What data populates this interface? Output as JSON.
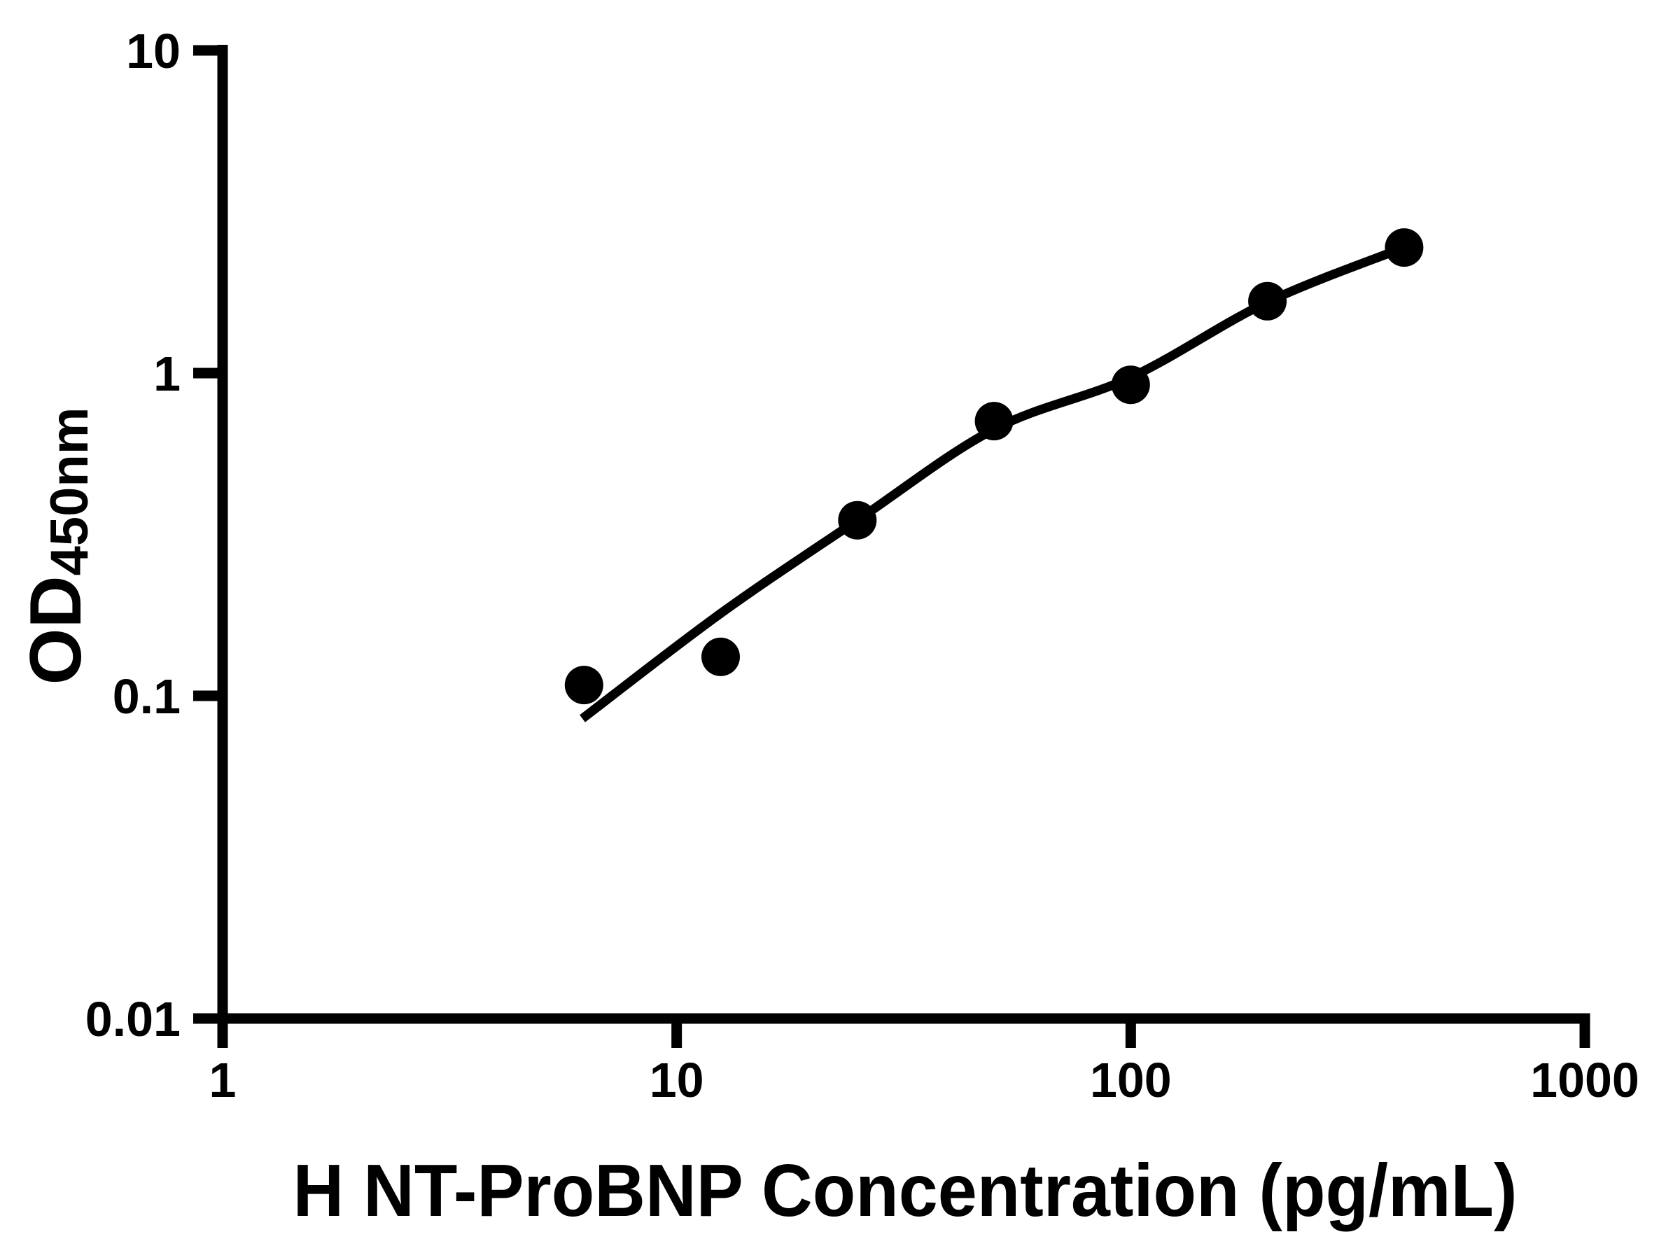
{
  "figure": {
    "background": "#ffffff",
    "ink": "#000000"
  },
  "chart_data": {
    "type": "scatter",
    "title": "",
    "xlabel": "H NT-ProBNP Concentration (pg/mL)",
    "ylabel": "OD",
    "ylabel_subscript": "450nm",
    "x_scale": "log",
    "y_scale": "log",
    "xlim": [
      1,
      1000
    ],
    "ylim": [
      0.01,
      10
    ],
    "x_ticks": [
      1,
      10,
      100,
      1000
    ],
    "x_tick_labels": [
      "1",
      "10",
      "100",
      "1000"
    ],
    "y_ticks": [
      0.01,
      0.1,
      1,
      10
    ],
    "y_tick_labels": [
      "0.01",
      "0.1",
      "1",
      "10"
    ],
    "grid": false,
    "legend": false,
    "series": [
      {
        "marker": "circle",
        "color": "#000000",
        "x": [
          6.25,
          12.5,
          25,
          50,
          100,
          200,
          400
        ],
        "y": [
          0.108,
          0.132,
          0.35,
          0.71,
          0.92,
          1.67,
          2.45
        ]
      }
    ],
    "fit_curve": {
      "color": "#000000",
      "x": [
        6.2,
        12.5,
        25,
        50,
        100,
        200,
        400
      ],
      "y": [
        0.085,
        0.18,
        0.35,
        0.67,
        0.97,
        1.66,
        2.45
      ]
    }
  }
}
